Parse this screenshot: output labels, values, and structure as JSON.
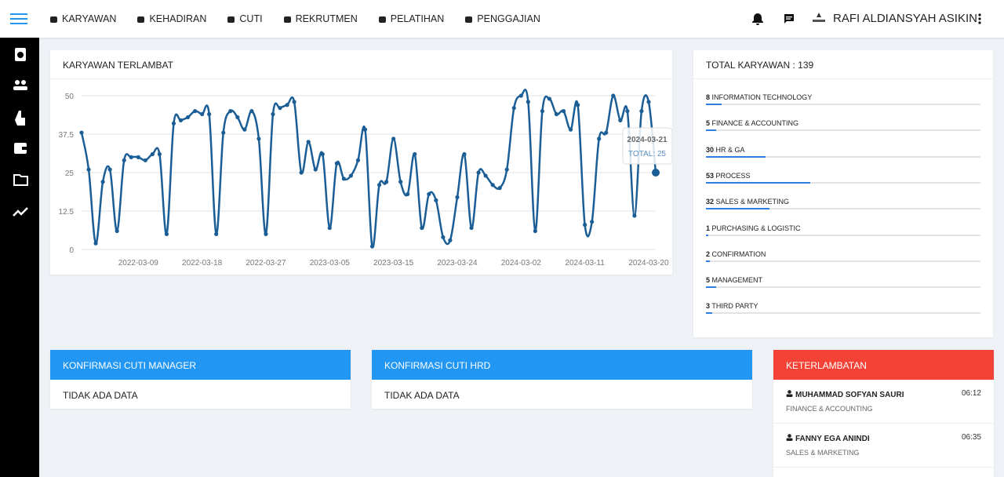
{
  "nav": {
    "items": [
      "KARYAWAN",
      "KEHADIRAN",
      "CUTI",
      "REKRUTMEN",
      "PELATIHAN",
      "PENGGAJIAN"
    ],
    "user": "RAFI ALDIANSYAH ASIKIN"
  },
  "chart_data": {
    "type": "line",
    "title": "KARYAWAN TERLAMBAT",
    "categories": [
      null,
      null,
      null,
      null,
      null,
      null,
      null,
      null,
      "2022-03-09",
      null,
      null,
      null,
      null,
      null,
      null,
      null,
      null,
      "2022-03-18",
      null,
      null,
      null,
      null,
      null,
      null,
      null,
      null,
      "2022-03-27",
      null,
      null,
      null,
      null,
      null,
      null,
      null,
      null,
      "2023-03-05",
      null,
      null,
      null,
      null,
      null,
      null,
      null,
      null,
      "2023-03-15",
      null,
      null,
      null,
      null,
      null,
      null,
      null,
      null,
      "2023-03-24",
      null,
      null,
      null,
      null,
      null,
      null,
      null,
      null,
      "2024-03-02",
      null,
      null,
      null,
      null,
      null,
      null,
      null,
      null,
      "2024-03-11",
      null,
      null,
      null,
      null,
      null,
      null,
      null,
      null,
      "2024-03-20",
      null
    ],
    "values": [
      38,
      26,
      2,
      22,
      26,
      6,
      29,
      30,
      30,
      29,
      31,
      31,
      5,
      41,
      42,
      43,
      45,
      44,
      44,
      5,
      38,
      45,
      43,
      39,
      45,
      36,
      5,
      44,
      46,
      47,
      48,
      25,
      35,
      26,
      31,
      7,
      28,
      23,
      24,
      29,
      39,
      1,
      21,
      22,
      36,
      22,
      18,
      31,
      7,
      18,
      16,
      4,
      3,
      17,
      31,
      7,
      25,
      24,
      21,
      20,
      26,
      46,
      50,
      48,
      6,
      45,
      49,
      44,
      45,
      39,
      47,
      8,
      9,
      36,
      38,
      50,
      42,
      45,
      11,
      45,
      48,
      25
    ],
    "color": "#1b5e96",
    "tooltip": {
      "x": "2024-03-21",
      "label": "TOTAL: 25"
    },
    "ylim": [
      0,
      50
    ],
    "yticks": [
      0,
      12.5,
      25,
      37.5,
      50
    ],
    "grid": true
  },
  "employees": {
    "title": "TOTAL KARYAWAN :",
    "total": 139,
    "departments": [
      {
        "count": 8,
        "name": "INFORMATION TECHNOLOGY"
      },
      {
        "count": 5,
        "name": "FINANCE & ACCOUNTING"
      },
      {
        "count": 30,
        "name": "HR & GA"
      },
      {
        "count": 53,
        "name": "PROCESS"
      },
      {
        "count": 32,
        "name": "SALES & MARKETING"
      },
      {
        "count": 1,
        "name": "PURCHASING & LOGISTIC"
      },
      {
        "count": 2,
        "name": "CONFIRMATION"
      },
      {
        "count": 5,
        "name": "MANAGEMENT"
      },
      {
        "count": 3,
        "name": "THIRD PARTY"
      }
    ]
  },
  "panels": [
    {
      "title": "KONFIRMASI CUTI MANAGER",
      "body": "TIDAK ADA DATA"
    },
    {
      "title": "KONFIRMASI CUTI HRD",
      "body": "TIDAK ADA DATA"
    }
  ],
  "lateness": {
    "title": "KETERLAMBATAN",
    "entries": [
      {
        "name": "MUHAMMAD SOFYAN SAURI",
        "department": "FINANCE & ACCOUNTING",
        "time": "06:12"
      },
      {
        "name": "FANNY EGA ANINDI",
        "department": "SALES & MARKETING",
        "time": "06:35"
      }
    ]
  }
}
